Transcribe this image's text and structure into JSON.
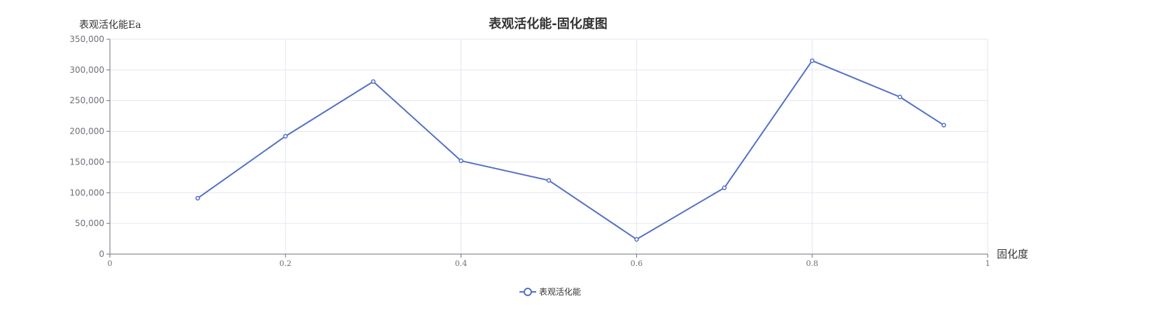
{
  "colors": {
    "series": "#5470c6",
    "grid": "#e0e6f1",
    "axis": "#6e7079",
    "text": "#333333"
  },
  "chart_data": {
    "type": "line",
    "title": "表观活化能-固化度图",
    "xlabel": "固化度",
    "ylabel": "表观活化能Ea",
    "xlim": [
      0,
      1
    ],
    "ylim": [
      0,
      350000
    ],
    "x_ticks": [
      "0",
      "0.2",
      "0.4",
      "0.6",
      "0.8",
      "1"
    ],
    "y_ticks": [
      "0",
      "50,000",
      "100,000",
      "150,000",
      "200,000",
      "250,000",
      "300,000",
      "350,000"
    ],
    "grid": true,
    "legend_position": "bottom-center",
    "series": [
      {
        "name": "表观活化能",
        "x": [
          0.1,
          0.2,
          0.3,
          0.4,
          0.5,
          0.6,
          0.7,
          0.8,
          0.9,
          0.95
        ],
        "y": [
          91000,
          192000,
          281000,
          152000,
          120000,
          24000,
          108000,
          315000,
          256000,
          210000
        ]
      }
    ]
  }
}
